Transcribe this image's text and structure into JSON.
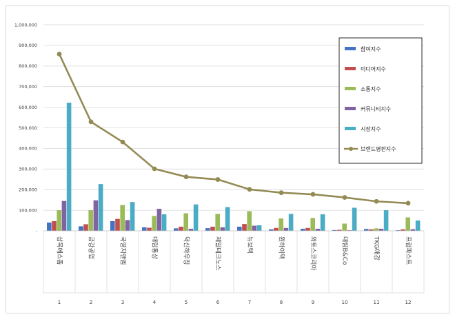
{
  "chart_data": {
    "type": "bar",
    "title": "",
    "xlabel": "",
    "ylabel": "",
    "ylim": [
      0,
      1000000
    ],
    "y_ticks": [
      "-",
      "100,000",
      "200,000",
      "300,000",
      "400,000",
      "500,000",
      "600,000",
      "700,000",
      "800,000",
      "900,000",
      "1,000,000"
    ],
    "grid": true,
    "legend_position": "top-right",
    "categories": [
      "삼목에스폼",
      "금강공업",
      "국영지앤엠",
      "대림통상",
      "덕신하우징",
      "제일테크노스",
      "뉴보텍",
      "원하이텍",
      "와토스코리아",
      "대림B&Co",
      "TKG애강",
      "프럼파스트"
    ],
    "ranks": [
      "1",
      "2",
      "3",
      "4",
      "5",
      "6",
      "7",
      "8",
      "9",
      "10",
      "11",
      "12"
    ],
    "series": [
      {
        "name": "참여지수",
        "kind": "bar",
        "color": "#4472c4",
        "values": [
          40000,
          22000,
          47000,
          17000,
          12000,
          13000,
          20000,
          7000,
          10000,
          4000,
          9000,
          3000
        ]
      },
      {
        "name": "미디어지수",
        "kind": "bar",
        "color": "#c0504d",
        "values": [
          47000,
          32000,
          58000,
          15000,
          20000,
          20000,
          33000,
          14000,
          14000,
          5000,
          7000,
          7000
        ]
      },
      {
        "name": "소통지수",
        "kind": "bar",
        "color": "#9bbb59",
        "values": [
          100000,
          100000,
          125000,
          72000,
          85000,
          82000,
          95000,
          60000,
          62000,
          35000,
          12000,
          65000
        ]
      },
      {
        "name": "커뮤니티지수",
        "kind": "bar",
        "color": "#8064a2",
        "values": [
          145000,
          148000,
          52000,
          107000,
          10000,
          17000,
          25000,
          14000,
          10000,
          3000,
          10000,
          8000
        ]
      },
      {
        "name": "시장지수",
        "kind": "bar",
        "color": "#4bacc6",
        "values": [
          622000,
          227000,
          140000,
          80000,
          128000,
          115000,
          27000,
          82000,
          80000,
          112000,
          100000,
          50000
        ]
      },
      {
        "name": "브랜드평판지수",
        "kind": "line",
        "color": "#948a54",
        "values": [
          858000,
          529000,
          431000,
          301000,
          262000,
          249000,
          201000,
          185000,
          177000,
          162000,
          143000,
          134000
        ]
      }
    ]
  }
}
